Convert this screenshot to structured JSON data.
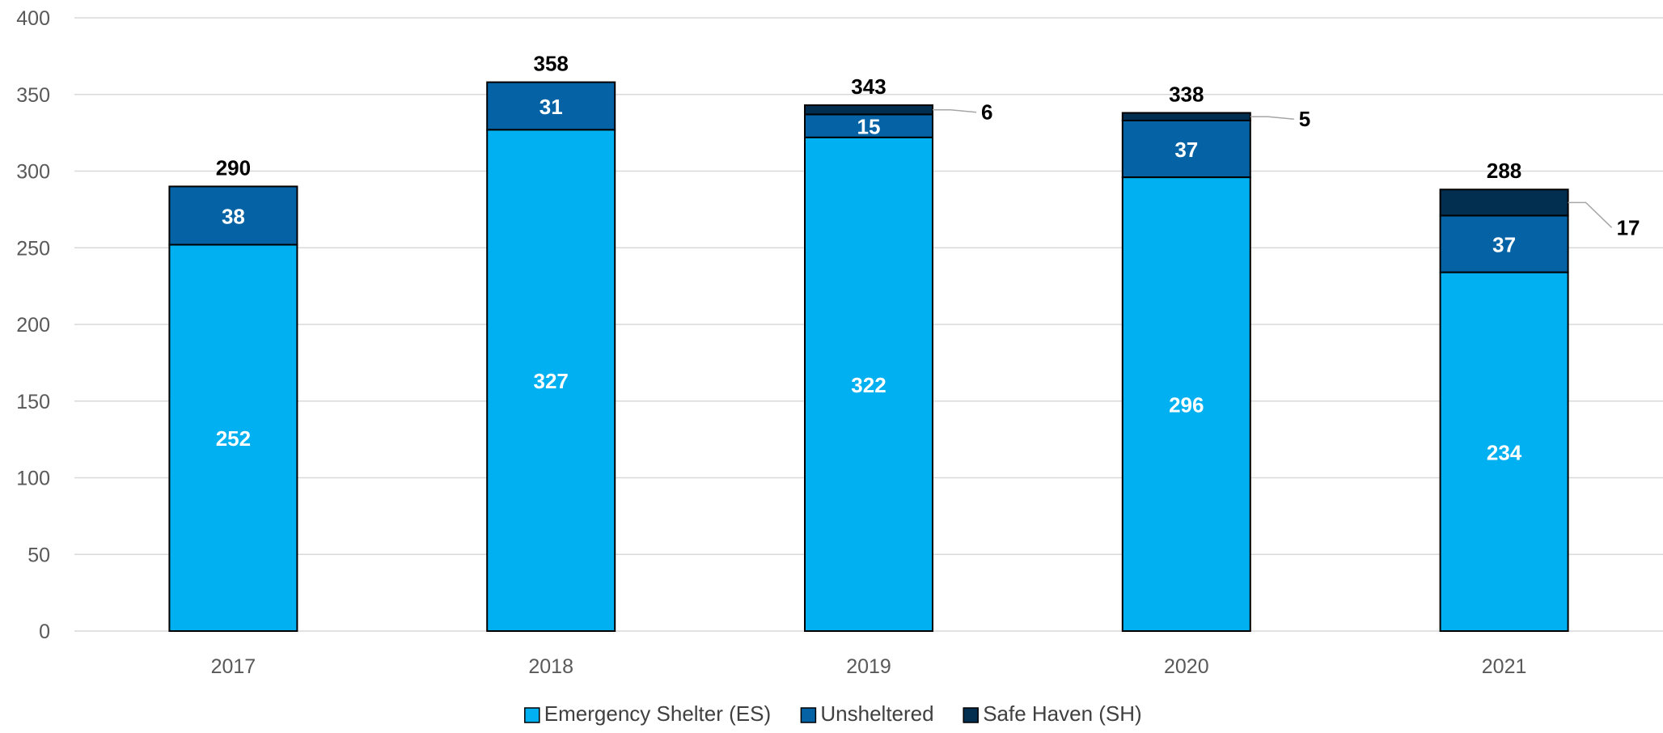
{
  "chart_data": {
    "type": "bar",
    "stacked": true,
    "title": "",
    "xlabel": "",
    "ylabel": "",
    "categories": [
      "2017",
      "2018",
      "2019",
      "2020",
      "2021"
    ],
    "series": [
      {
        "name": "Emergency Shelter (ES)",
        "values": [
          252,
          327,
          322,
          296,
          234
        ],
        "color": "#00B0F0"
      },
      {
        "name": "Unsheltered",
        "values": [
          38,
          31,
          15,
          37,
          37
        ],
        "color": "#0563A5"
      },
      {
        "name": "Safe Haven (SH)",
        "values": [
          0,
          0,
          6,
          5,
          17
        ],
        "color": "#022E4F"
      }
    ],
    "totals": [
      290,
      358,
      343,
      338,
      288
    ],
    "ylim": [
      0,
      400
    ],
    "yticks": [
      "0",
      "50",
      "100",
      "150",
      "200",
      "250",
      "300",
      "350",
      "400"
    ],
    "grid": true,
    "legend": "bottom-center",
    "callout_series": "Safe Haven (SH)",
    "gridline_color": "#D9D9D9",
    "bar_outline_color": "#000000"
  }
}
